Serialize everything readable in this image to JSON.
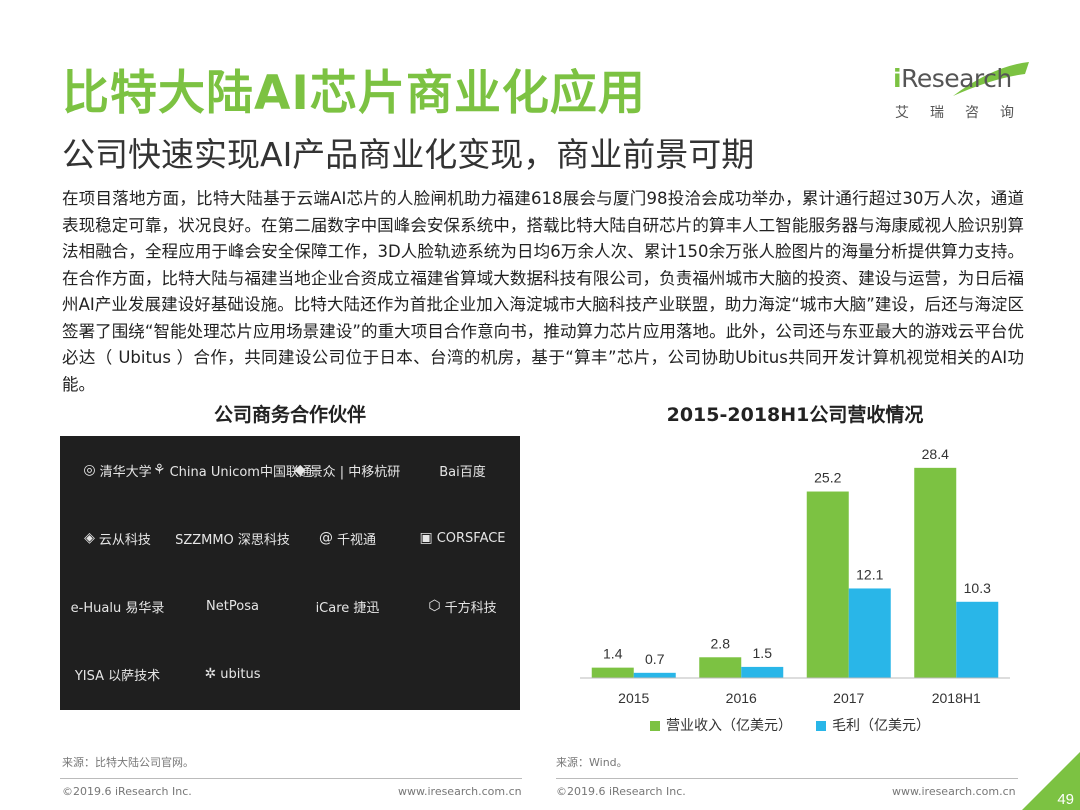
{
  "header": {
    "title": "比特大陆AI芯片商业化应用",
    "subtitle": "公司快速实现AI产品商业化变现，商业前景可期",
    "logo_main_i": "i",
    "logo_main_rest": "Research",
    "logo_sub": "艾瑞咨询"
  },
  "body_text": "在项目落地方面，比特大陆基于云端AI芯片的人脸闸机助力福建618展会与厦门98投洽会成功举办，累计通行超过30万人次，通道表现稳定可靠，状况良好。在第二届数字中国峰会安保系统中，搭载比特大陆自研芯片的算丰人工智能服务器与海康威视人脸识别算法相融合，全程应用于峰会安全保障工作，3D人脸轨迹系统为日均6万余人次、累计150余万张人脸图片的海量分析提供算力支持。在合作方面，比特大陆与福建当地企业合资成立福建省算域大数据科技有限公司，负责福州城市大脑的投资、建设与运营，为日后福州AI产业发展建设好基础设施。比特大陆还作为首批企业加入海淀城市大脑科技产业联盟，助力海淀“城市大脑”建设，后还与海淀区签署了围绕“智能处理芯片应用场景建设”的重大项目合作意向书，推动算力芯片应用落地。此外，公司还与东亚最大的游戏云平台优必达（ Ubitus ）合作，共同建设公司位于日本、台湾的机房，基于“算丰”芯片，公司协助Ubitus共同开发计算机视觉相关的AI功能。",
  "partners": {
    "heading": "公司商务合作伙伴",
    "logos": [
      {
        "icon": "◎",
        "label": "清华大学",
        "name": "tsinghua"
      },
      {
        "icon": "⚘",
        "label": "China Unicom中国联通",
        "name": "china-unicom"
      },
      {
        "icon": "◆",
        "label": "景众 | 中移杭研",
        "name": "cmcc-hangzhou"
      },
      {
        "icon": "",
        "label": "Bai百度",
        "name": "baidu"
      },
      {
        "icon": "◈",
        "label": "云从科技",
        "name": "cloudwalk"
      },
      {
        "icon": "",
        "label": "SZZMMO 深思科技",
        "name": "szzmmo"
      },
      {
        "icon": "@",
        "label": "千视通",
        "name": "qianshitong"
      },
      {
        "icon": "▣",
        "label": "CORSFACE",
        "name": "corsface"
      },
      {
        "icon": "",
        "label": "e-Hualu 易华录",
        "name": "ehualu"
      },
      {
        "icon": "",
        "label": "NetPosa",
        "name": "netposa"
      },
      {
        "icon": "",
        "label": "iCare 捷迅",
        "name": "icare"
      },
      {
        "icon": "⬡",
        "label": "千方科技",
        "name": "chinatransinfo"
      },
      {
        "icon": "",
        "label": "YISA 以萨技术",
        "name": "yisa"
      },
      {
        "icon": "✲",
        "label": "ubitus",
        "name": "ubitus"
      }
    ]
  },
  "chart_data": {
    "type": "bar",
    "title": "2015-2018H1公司营收情况",
    "categories": [
      "2015",
      "2016",
      "2017",
      "2018H1"
    ],
    "series": [
      {
        "name": "营业收入（亿美元）",
        "values": [
          1.4,
          2.8,
          25.2,
          28.4
        ],
        "color": "#7cc242"
      },
      {
        "name": "毛利（亿美元）",
        "values": [
          0.7,
          1.5,
          12.1,
          10.3
        ],
        "color": "#29b6e8"
      }
    ],
    "ylim": [
      0,
      30
    ],
    "grid": false,
    "legend_position": "bottom"
  },
  "sources": {
    "left": "来源：比特大陆公司官网。",
    "right": "来源：Wind。"
  },
  "footer": {
    "copyright_left": "©2019.6 iResearch Inc.",
    "url_left": "www.iresearch.com.cn",
    "copyright_right": "©2019.6 iResearch Inc.",
    "url_right": "www.iresearch.com.cn",
    "page_number": "49"
  }
}
